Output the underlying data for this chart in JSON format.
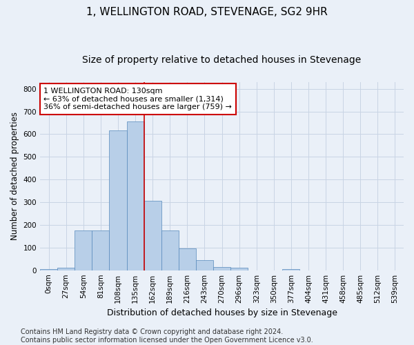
{
  "title": "1, WELLINGTON ROAD, STEVENAGE, SG2 9HR",
  "subtitle": "Size of property relative to detached houses in Stevenage",
  "xlabel": "Distribution of detached houses by size in Stevenage",
  "ylabel": "Number of detached properties",
  "bar_labels": [
    "0sqm",
    "27sqm",
    "54sqm",
    "81sqm",
    "108sqm",
    "135sqm",
    "162sqm",
    "189sqm",
    "216sqm",
    "243sqm",
    "270sqm",
    "296sqm",
    "323sqm",
    "350sqm",
    "377sqm",
    "404sqm",
    "431sqm",
    "458sqm",
    "485sqm",
    "512sqm",
    "539sqm"
  ],
  "bar_values": [
    5,
    12,
    175,
    175,
    615,
    655,
    305,
    175,
    97,
    45,
    13,
    10,
    0,
    0,
    5,
    0,
    0,
    0,
    0,
    0,
    0
  ],
  "bar_color": "#b8cfe8",
  "bar_edge_color": "#5588bb",
  "grid_color": "#c8d4e4",
  "background_color": "#eaf0f8",
  "vline_x": 5.5,
  "vline_color": "#cc0000",
  "annotation_text": "1 WELLINGTON ROAD: 130sqm\n← 63% of detached houses are smaller (1,314)\n36% of semi-detached houses are larger (759) →",
  "annotation_box_color": "#ffffff",
  "annotation_box_edge_color": "#cc0000",
  "ylim": [
    0,
    830
  ],
  "yticks": [
    0,
    100,
    200,
    300,
    400,
    500,
    600,
    700,
    800
  ],
  "footer_text": "Contains HM Land Registry data © Crown copyright and database right 2024.\nContains public sector information licensed under the Open Government Licence v3.0.",
  "title_fontsize": 11,
  "subtitle_fontsize": 10,
  "xlabel_fontsize": 9,
  "ylabel_fontsize": 8.5,
  "tick_fontsize": 7.5,
  "footer_fontsize": 7,
  "annotation_fontsize": 8
}
